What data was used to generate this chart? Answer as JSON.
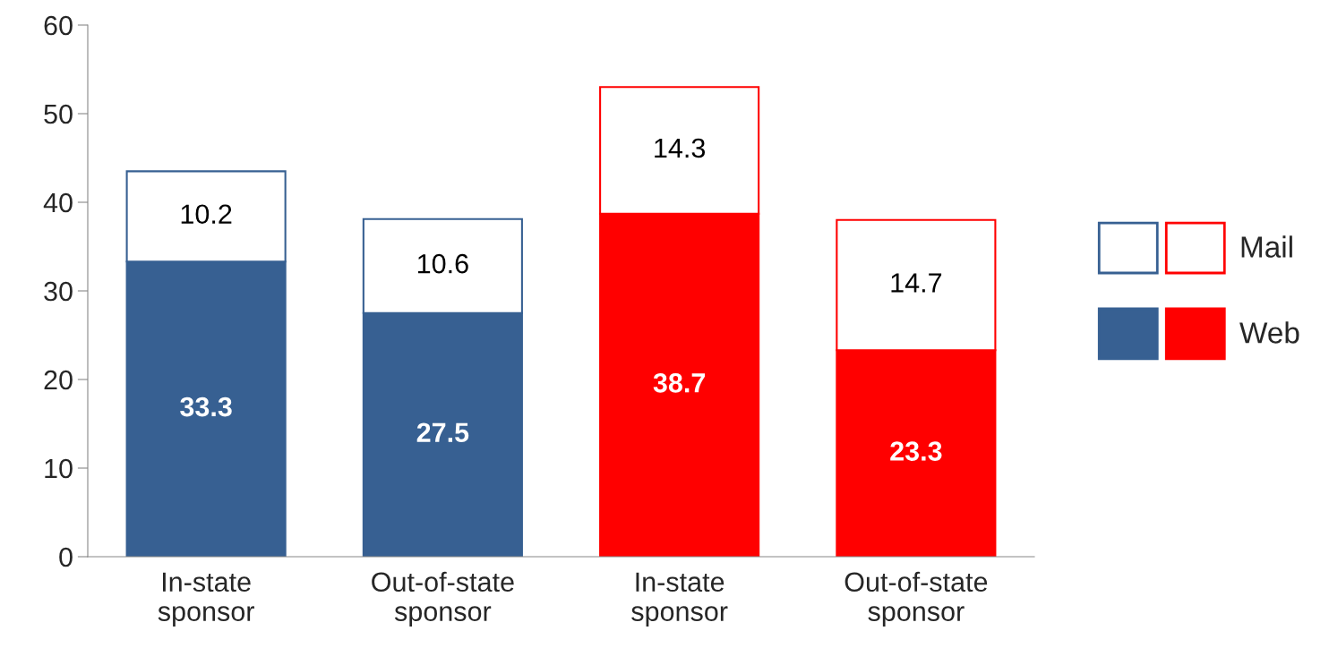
{
  "chart_data": {
    "type": "bar",
    "stacked": true,
    "categories": [
      "In-state\nsponsor",
      "Out-of-state\nsponsor",
      "In-state\nsponsor",
      "Out-of-state\nsponsor"
    ],
    "series": [
      {
        "name": "Web",
        "colors": [
          "#376092",
          "#376092",
          "#ff0000",
          "#ff0000"
        ],
        "values": [
          33.3,
          27.5,
          38.7,
          23.3
        ]
      },
      {
        "name": "Mail",
        "colors": [
          "#ffffff",
          "#ffffff",
          "#ffffff",
          "#ffffff"
        ],
        "values": [
          10.2,
          10.6,
          14.3,
          14.7
        ]
      }
    ],
    "ylim": [
      0,
      60
    ],
    "yticks": [
      0,
      10,
      20,
      30,
      40,
      50,
      60
    ],
    "grid": false,
    "legend": "right",
    "data_labels": true
  }
}
